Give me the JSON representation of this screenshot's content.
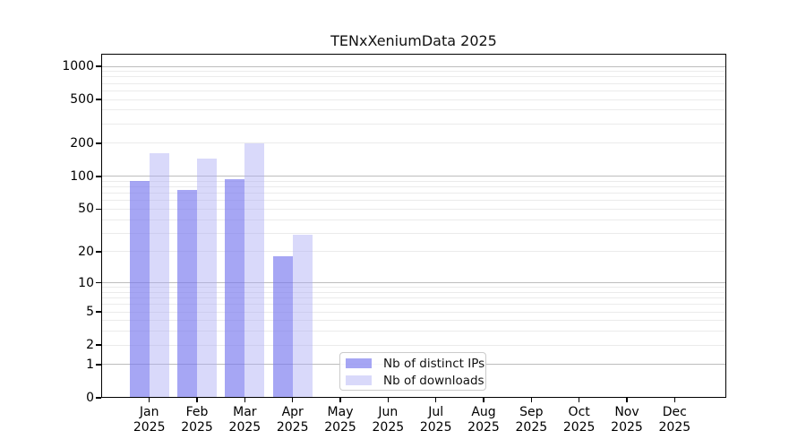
{
  "title": "TENxXeniumData 2025",
  "chart_data": {
    "type": "bar",
    "title": "TENxXeniumData 2025",
    "scale": "log1p",
    "grid": true,
    "legend_position": "lower-center-inside",
    "x_categories": [
      "Jan",
      "Feb",
      "Mar",
      "Apr",
      "May",
      "Jun",
      "Jul",
      "Aug",
      "Sep",
      "Oct",
      "Nov",
      "Dec"
    ],
    "x_year_line": "2025",
    "series": [
      {
        "name": "Nb of distinct IPs",
        "color": "rgba(118,118,238,0.65)",
        "color_hex": "#a6a6f4",
        "values": [
          90,
          75,
          94,
          18,
          null,
          null,
          null,
          null,
          null,
          null,
          null,
          null
        ]
      },
      {
        "name": "Nb of downloads",
        "color": "rgba(170,170,245,0.45)",
        "color_hex": "#d8d8fa",
        "values": [
          162,
          145,
          200,
          29,
          null,
          null,
          null,
          null,
          null,
          null,
          null,
          null
        ]
      }
    ],
    "y_ticks": [
      0,
      1,
      2,
      5,
      10,
      20,
      50,
      100,
      200,
      500,
      1000
    ],
    "y_major_gridlines": [
      1,
      10,
      100,
      1000
    ],
    "y_minor_gridlines": [
      2,
      3,
      4,
      5,
      6,
      7,
      8,
      9,
      20,
      30,
      40,
      50,
      60,
      70,
      80,
      90,
      200,
      300,
      400,
      500,
      600,
      700,
      800,
      900
    ],
    "ylim": [
      0,
      1300
    ]
  },
  "colors": {
    "major_grid": "#bdbdbd",
    "minor_grid": "#ebebeb",
    "axis": "#000000",
    "text": "#111111",
    "background": "#ffffff"
  }
}
